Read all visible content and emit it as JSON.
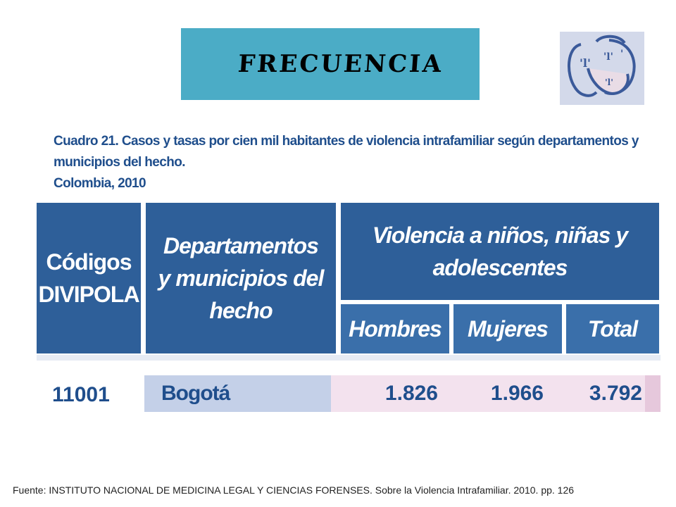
{
  "header": {
    "title": "FRECUENCIA",
    "title_bg": "#4bacc6"
  },
  "logo": {
    "icon": "faces-logo-icon"
  },
  "caption": {
    "line1": "Cuadro 21. Casos y tasas por cien mil habitantes de violencia intrafamiliar según departamentos y municipios del hecho.",
    "line2": "Colombia, 2010"
  },
  "table": {
    "columns": {
      "codigos_line1": "Códigos",
      "codigos_line2": "DIVIPOLA",
      "depto_line1": "Departamentos",
      "depto_line2": "y municipios del",
      "depto_line3": "hecho",
      "violencia_line1": "Violencia a niños, niñas y",
      "violencia_line2": "adolescentes",
      "hombres": "Hombres",
      "mujeres": "Mujeres",
      "total": "Total"
    },
    "rows": [
      {
        "codigo": "11001",
        "municipio": "Bogotá",
        "hombres": "1.826",
        "mujeres": "1.966",
        "total": "3.792"
      }
    ],
    "colors": {
      "header": "#2e5f99",
      "row_name_bg": "#c4d0e8",
      "row_data_bg": "#f3e2ee"
    }
  },
  "footer": {
    "source": "Fuente: INSTITUTO NACIONAL DE MEDICINA LEGAL Y CIENCIAS FORENSES. Sobre la Violencia Intrafamiliar.  2010. pp. 126"
  }
}
